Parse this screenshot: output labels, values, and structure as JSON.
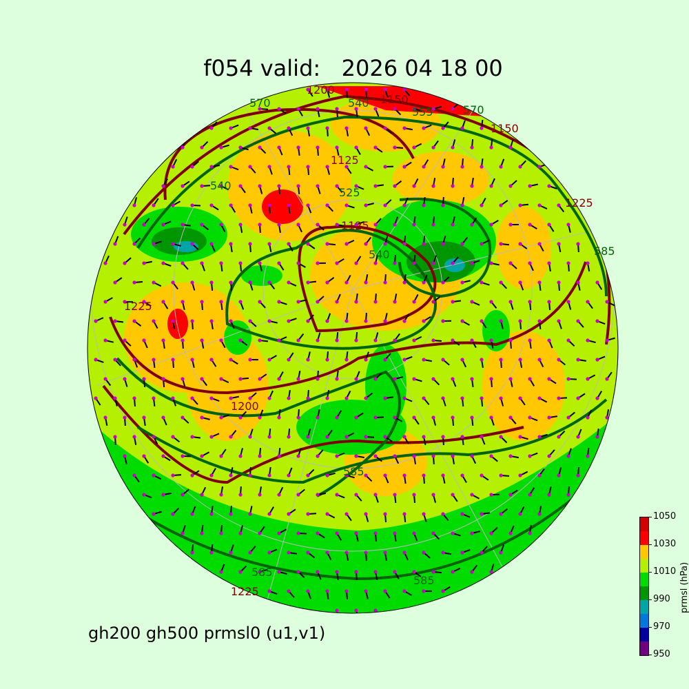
{
  "title": "f054 valid:   2026 04 18 00",
  "subtitle": "gh200 gh500 prmsl0 (u1,v1)",
  "colorbar": {
    "label": "prmsl (hPa)",
    "ticks": [
      "950",
      "970",
      "990",
      "1010",
      "1030",
      "1050"
    ],
    "colors": [
      "#70007f",
      "#0000a0",
      "#0078dc",
      "#00a5a5",
      "#009600",
      "#00dc00",
      "#b4f000",
      "#ffc800",
      "#ff0000",
      "#d20000"
    ]
  },
  "contour_labels": {
    "gh500": [
      "570",
      "540",
      "555",
      "570",
      "525",
      "540",
      "540",
      "585",
      "585",
      "585",
      "585"
    ],
    "gh200": [
      "1200",
      "1150",
      "1125",
      "1225",
      "1125",
      "1150",
      "1225",
      "1200",
      "1225"
    ]
  },
  "colors": {
    "background": "#ddffdd",
    "gh200_contour": "#800000",
    "gh500_contour": "#006400",
    "wind_dots": "#cc00cc"
  }
}
